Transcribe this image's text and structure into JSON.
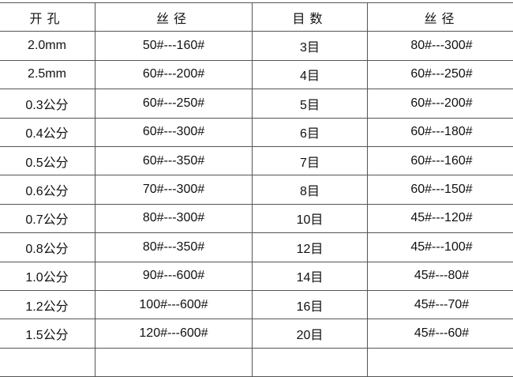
{
  "headers": [
    "开孔",
    "丝径",
    "目数",
    "丝径"
  ],
  "rows": [
    [
      "2.0mm",
      "50#---160#",
      "3目",
      "80#---300#"
    ],
    [
      "2.5mm",
      "60#---200#",
      "4目",
      "60#---250#"
    ],
    [
      "0.3公分",
      "60#---250#",
      "5目",
      "60#---200#"
    ],
    [
      "0.4公分",
      "60#---300#",
      "6目",
      "60#---180#"
    ],
    [
      "0.5公分",
      "60#---350#",
      "7目",
      "60#---160#"
    ],
    [
      "0.6公分",
      "70#---300#",
      "8目",
      "60#---150#"
    ],
    [
      "0.7公分",
      "80#---300#",
      "10目",
      "45#---120#"
    ],
    [
      "0.8公分",
      "80#---350#",
      "12目",
      "45#---100#"
    ],
    [
      "1.0公分",
      "90#---600#",
      "14目",
      "45#---80#"
    ],
    [
      "1.2公分",
      "100#---600#",
      "16目",
      "45#---70#"
    ],
    [
      "1.5公分",
      "120#---600#",
      "20目",
      "45#---60#"
    ]
  ]
}
